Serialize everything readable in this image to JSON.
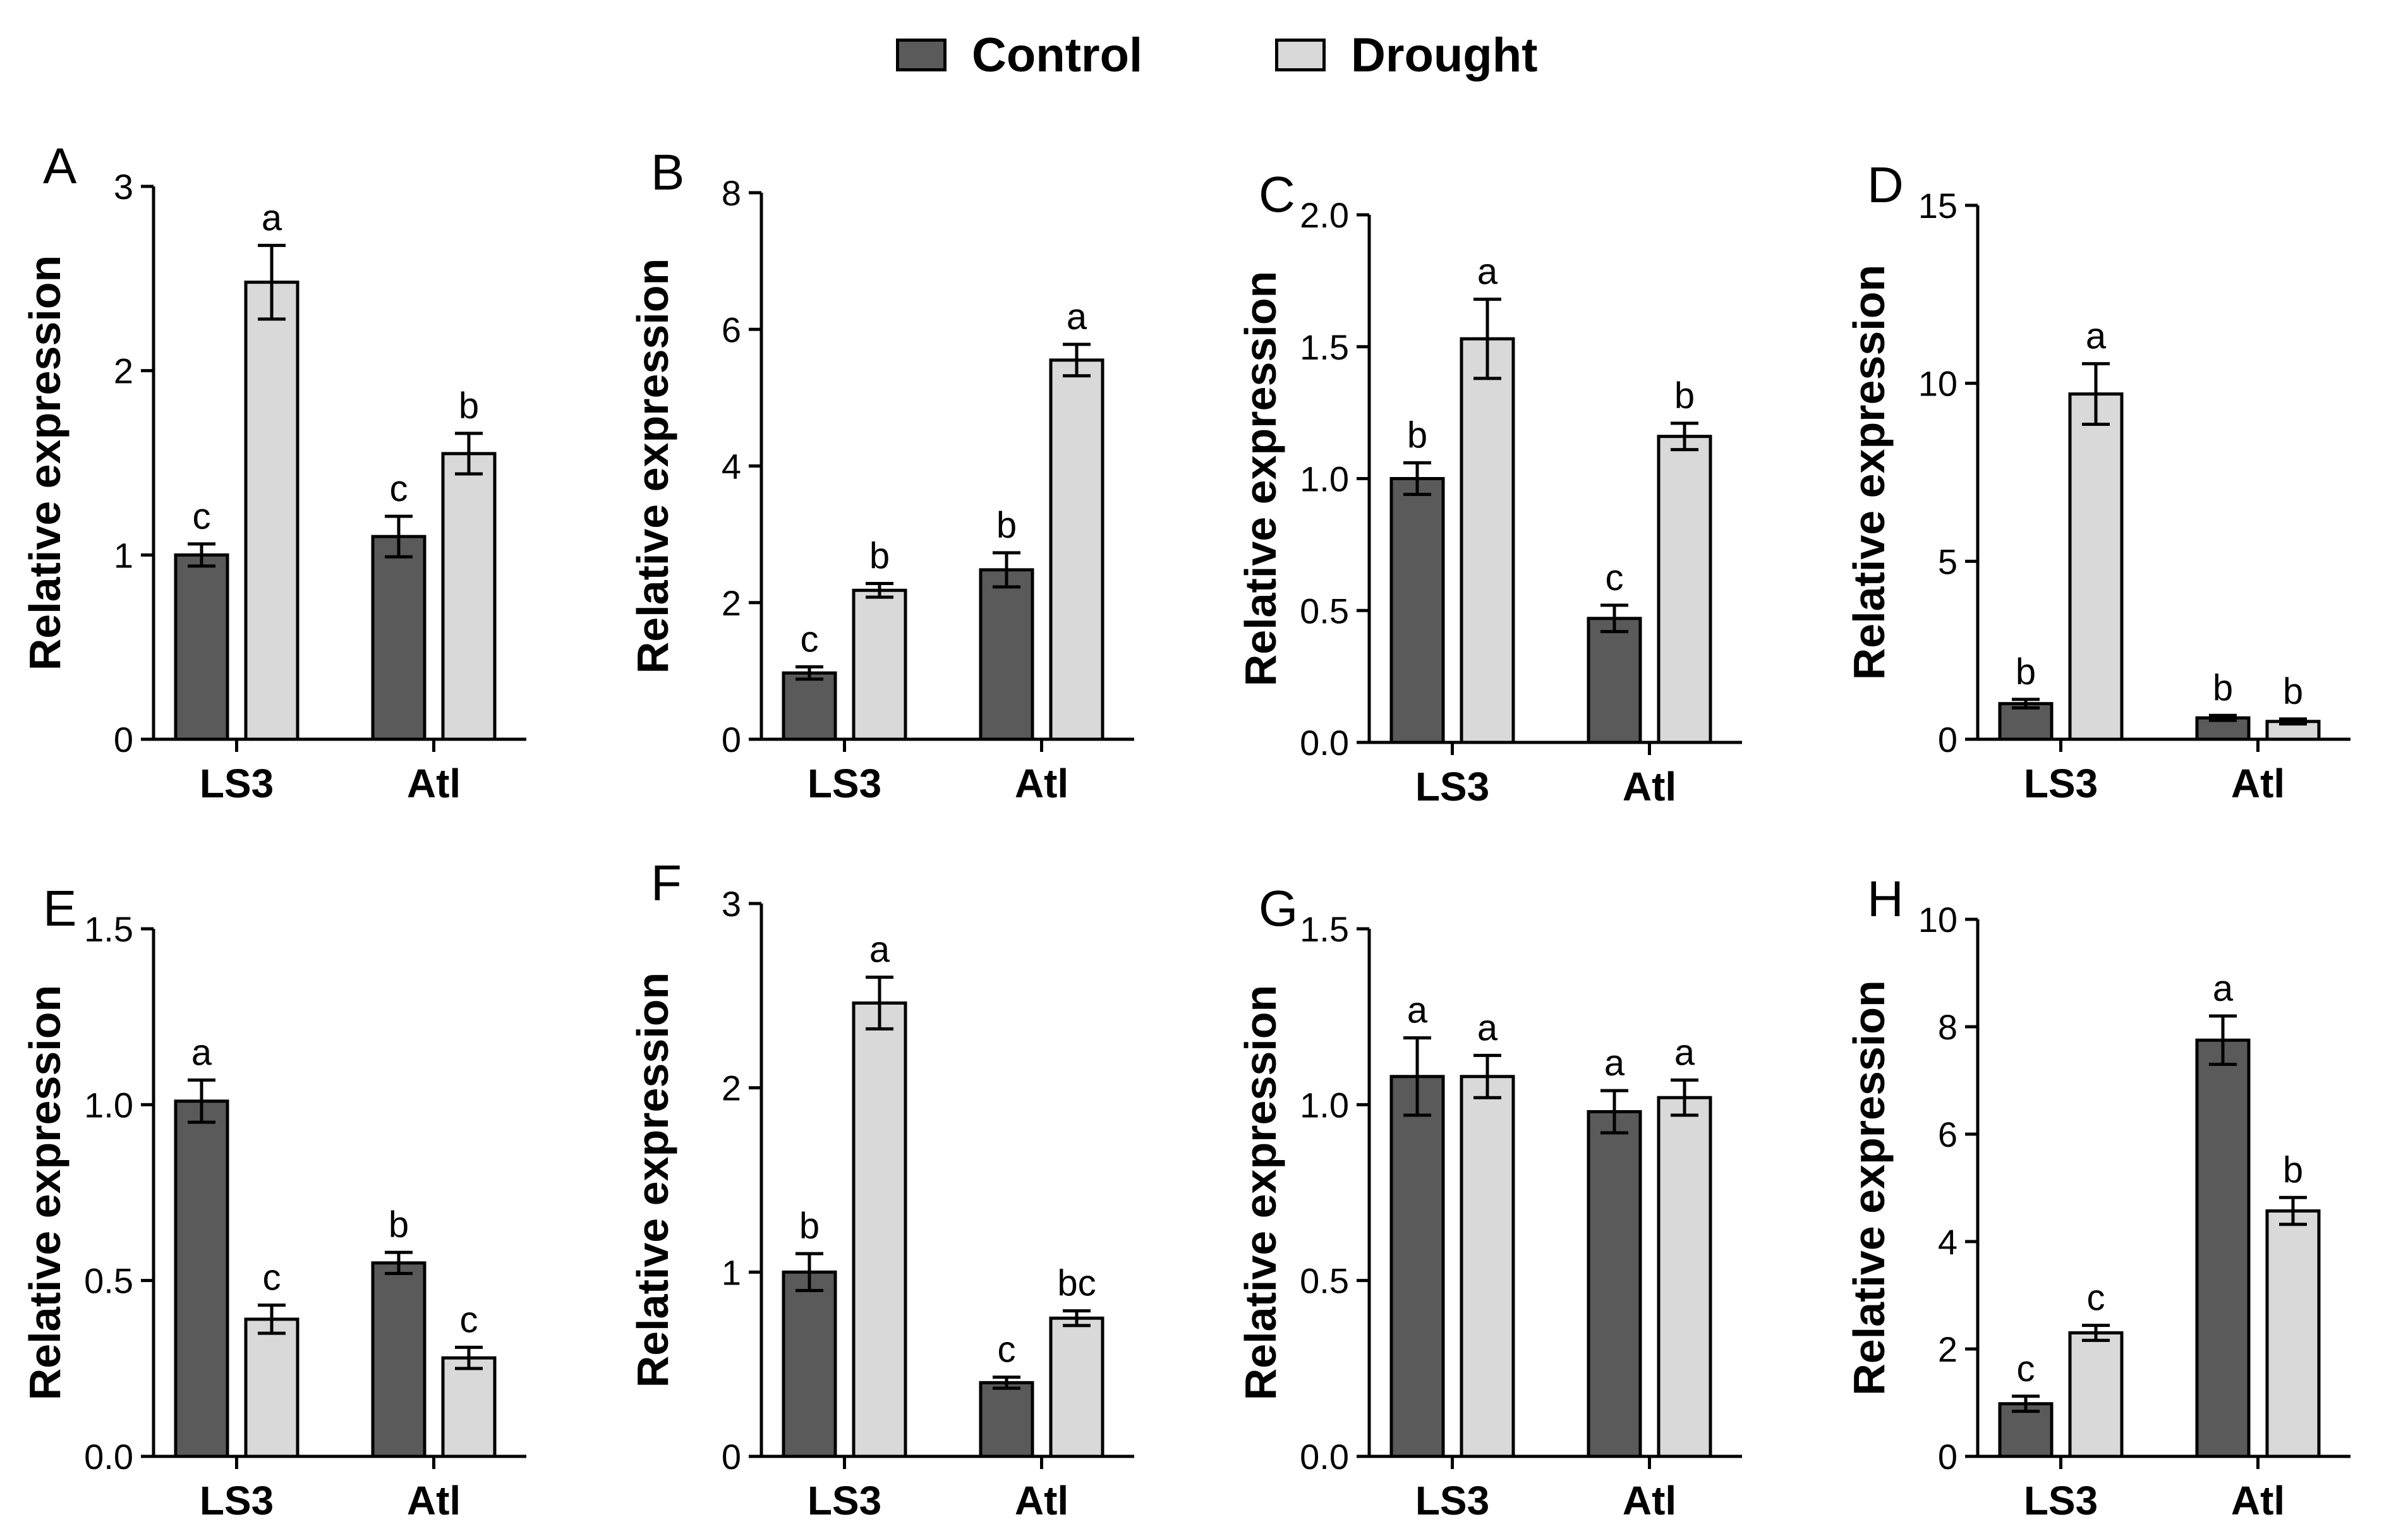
{
  "legend": {
    "items": [
      {
        "label": "Control",
        "color": "#5a5a5a"
      },
      {
        "label": "Drought",
        "color": "#d9d9d9"
      }
    ]
  },
  "chart_data": [
    {
      "type": "bar",
      "panel": "A",
      "ylabel": "Relative expression",
      "categories": [
        "LS3",
        "Atl"
      ],
      "ylim": [
        0,
        3
      ],
      "yticks": [
        0,
        1,
        2,
        3
      ],
      "series": [
        {
          "name": "Control",
          "values": [
            1.0,
            1.1
          ],
          "errors": [
            0.06,
            0.11
          ],
          "letters": [
            "c",
            "c"
          ]
        },
        {
          "name": "Drought",
          "values": [
            2.48,
            1.55
          ],
          "errors": [
            0.2,
            0.11
          ],
          "letters": [
            "a",
            "b"
          ]
        }
      ]
    },
    {
      "type": "bar",
      "panel": "B",
      "ylabel": "Relative expression",
      "categories": [
        "LS3",
        "Atl"
      ],
      "ylim": [
        0,
        8
      ],
      "yticks": [
        0,
        2,
        4,
        6,
        8
      ],
      "series": [
        {
          "name": "Control",
          "values": [
            0.97,
            2.48
          ],
          "errors": [
            0.09,
            0.25
          ],
          "letters": [
            "c",
            "b"
          ]
        },
        {
          "name": "Drought",
          "values": [
            2.18,
            5.55
          ],
          "errors": [
            0.1,
            0.23
          ],
          "letters": [
            "b",
            "a"
          ]
        }
      ]
    },
    {
      "type": "bar",
      "panel": "C",
      "ylabel": "Relative expression",
      "categories": [
        "LS3",
        "Atl"
      ],
      "ylim": [
        0,
        2.0
      ],
      "yticks": [
        0.0,
        0.5,
        1.0,
        1.5,
        2.0
      ],
      "yticklabels": [
        "0.0",
        "0.5",
        "1.0",
        "1.5",
        "2.0"
      ],
      "series": [
        {
          "name": "Control",
          "values": [
            1.0,
            0.47
          ],
          "errors": [
            0.06,
            0.05
          ],
          "letters": [
            "b",
            "c"
          ]
        },
        {
          "name": "Drought",
          "values": [
            1.53,
            1.16
          ],
          "errors": [
            0.15,
            0.05
          ],
          "letters": [
            "a",
            "b"
          ]
        }
      ]
    },
    {
      "type": "bar",
      "panel": "D",
      "ylabel": "Relative expression",
      "categories": [
        "LS3",
        "Atl"
      ],
      "ylim": [
        0,
        15
      ],
      "yticks": [
        0,
        5,
        10,
        15
      ],
      "series": [
        {
          "name": "Control",
          "values": [
            1.0,
            0.6
          ],
          "errors": [
            0.12,
            0.07
          ],
          "letters": [
            "b",
            "b"
          ]
        },
        {
          "name": "Drought",
          "values": [
            9.7,
            0.5
          ],
          "errors": [
            0.85,
            0.07
          ],
          "letters": [
            "a",
            "b"
          ]
        }
      ]
    },
    {
      "type": "bar",
      "panel": "E",
      "ylabel": "Relative expression",
      "categories": [
        "LS3",
        "Atl"
      ],
      "ylim": [
        0,
        1.5
      ],
      "yticks": [
        0.0,
        0.5,
        1.0,
        1.5
      ],
      "yticklabels": [
        "0.0",
        "0.5",
        "1.0",
        "1.5"
      ],
      "series": [
        {
          "name": "Control",
          "values": [
            1.01,
            0.55
          ],
          "errors": [
            0.06,
            0.03
          ],
          "letters": [
            "a",
            "b"
          ]
        },
        {
          "name": "Drought",
          "values": [
            0.39,
            0.28
          ],
          "errors": [
            0.04,
            0.03
          ],
          "letters": [
            "c",
            "c"
          ]
        }
      ]
    },
    {
      "type": "bar",
      "panel": "F",
      "ylabel": "Relative expression",
      "categories": [
        "LS3",
        "Atl"
      ],
      "ylim": [
        0,
        3
      ],
      "yticks": [
        0,
        1,
        2,
        3
      ],
      "series": [
        {
          "name": "Control",
          "values": [
            1.0,
            0.4
          ],
          "errors": [
            0.1,
            0.03
          ],
          "letters": [
            "b",
            "c"
          ]
        },
        {
          "name": "Drought",
          "values": [
            2.46,
            0.75
          ],
          "errors": [
            0.14,
            0.04
          ],
          "letters": [
            "a",
            "bc"
          ]
        }
      ]
    },
    {
      "type": "bar",
      "panel": "G",
      "ylabel": "Relative expression",
      "categories": [
        "LS3",
        "Atl"
      ],
      "ylim": [
        0,
        1.5
      ],
      "yticks": [
        0.0,
        0.5,
        1.0,
        1.5
      ],
      "yticklabels": [
        "0.0",
        "0.5",
        "1.0",
        "1.5"
      ],
      "series": [
        {
          "name": "Control",
          "values": [
            1.08,
            0.98
          ],
          "errors": [
            0.11,
            0.06
          ],
          "letters": [
            "a",
            "a"
          ]
        },
        {
          "name": "Drought",
          "values": [
            1.08,
            1.02
          ],
          "errors": [
            0.06,
            0.05
          ],
          "letters": [
            "a",
            "a"
          ]
        }
      ]
    },
    {
      "type": "bar",
      "panel": "H",
      "ylabel": "Relative expression",
      "categories": [
        "LS3",
        "Atl"
      ],
      "ylim": [
        0,
        10
      ],
      "yticks": [
        0,
        2,
        4,
        6,
        8,
        10
      ],
      "series": [
        {
          "name": "Control",
          "values": [
            0.98,
            7.75
          ],
          "errors": [
            0.14,
            0.45
          ],
          "letters": [
            "c",
            "a"
          ]
        },
        {
          "name": "Drought",
          "values": [
            2.3,
            4.57
          ],
          "errors": [
            0.14,
            0.25
          ],
          "letters": [
            "c",
            "b"
          ]
        }
      ]
    }
  ]
}
